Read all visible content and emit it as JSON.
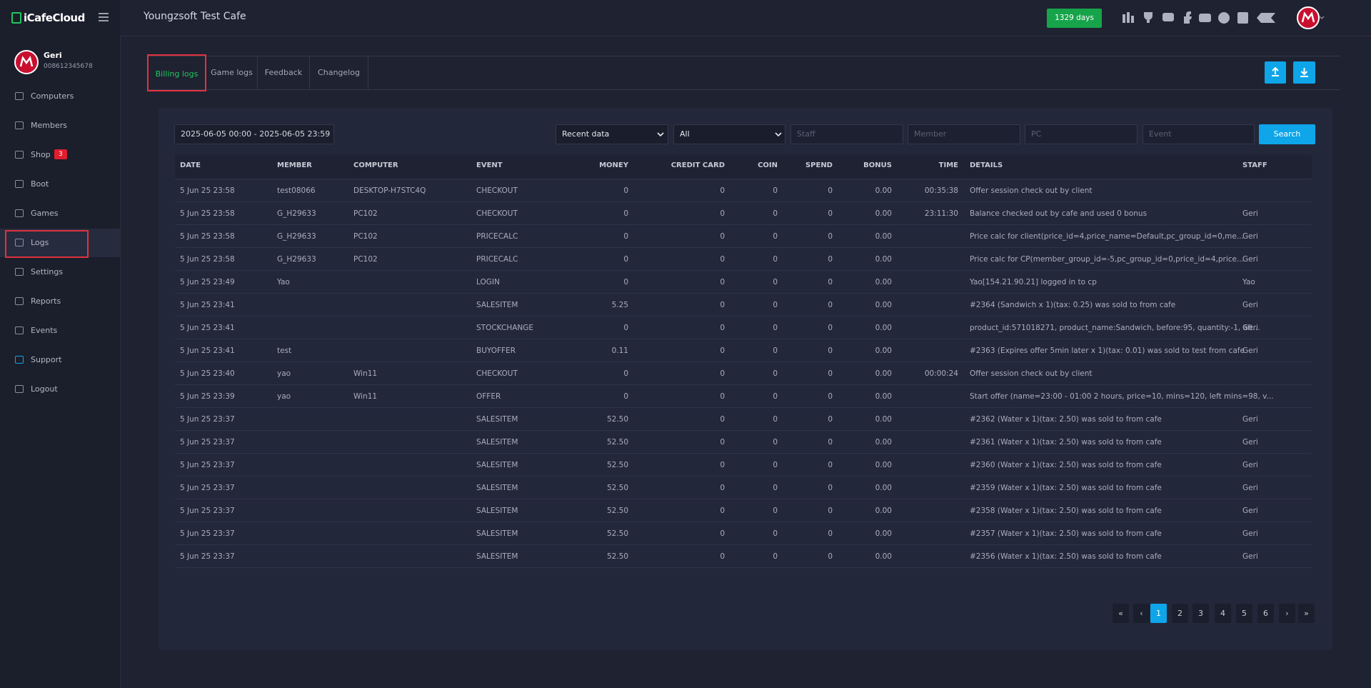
{
  "sidebar": {
    "logo": "iCafeCloud",
    "user": {
      "name": "Geri",
      "id": "008612345678"
    },
    "nav": [
      {
        "label": "Computers"
      },
      {
        "label": "Members"
      },
      {
        "label": "Shop",
        "badge": 3
      },
      {
        "label": "Boot"
      },
      {
        "label": "Games"
      },
      {
        "label": "Logs"
      },
      {
        "label": "Settings"
      },
      {
        "label": "Reports"
      },
      {
        "label": "Events"
      },
      {
        "label": "Support"
      },
      {
        "label": "Logout"
      }
    ]
  },
  "header": {
    "title": "Youngzsoft Test Cafe",
    "days": "1329 days"
  },
  "tabs": [
    "Billing logs",
    "Game logs",
    "Feedback",
    "Changelog"
  ],
  "filters": {
    "date_range": "2025-06-05 00:00 - 2025-06-05 23:59",
    "mode": "Recent data",
    "scope": "All",
    "staff": "Staff",
    "member": "Member",
    "pc": "PC",
    "event": "Event",
    "search": "Search"
  },
  "table": {
    "columns": [
      "DATE",
      "MEMBER",
      "COMPUTER",
      "EVENT",
      "MONEY",
      "CREDIT CARD",
      "COIN",
      "SPEND",
      "BONUS",
      "TIME",
      "DETAILS",
      "STAFF"
    ],
    "rows": [
      [
        "5 Jun 25 23:58",
        "test08066",
        "DESKTOP-H7STC4Q",
        "CHECKOUT",
        "0",
        "0",
        "0",
        "0",
        "0.00",
        "00:35:38",
        "Offer session check out by client",
        null
      ],
      [
        "5 Jun 25 23:58",
        "G_H29633",
        "PC102",
        "CHECKOUT",
        "0",
        "0",
        "0",
        "0",
        "0.00",
        "23:11:30",
        "Balance checked out by cafe and used 0 bonus",
        "Geri"
      ],
      [
        "5 Jun 25 23:58",
        "G_H29633",
        "PC102",
        "PRICECALC",
        "0",
        "0",
        "0",
        "0",
        "0.00",
        null,
        "Price calc for client(price_id=4,price_name=Default,pc_group_id=0,me...",
        "Geri"
      ],
      [
        "5 Jun 25 23:58",
        "G_H29633",
        "PC102",
        "PRICECALC",
        "0",
        "0",
        "0",
        "0",
        "0.00",
        null,
        "Price calc for CP(member_group_id=-5,pc_group_id=0,price_id=4,price...",
        "Geri"
      ],
      [
        "5 Jun 25 23:49",
        "Yao",
        null,
        "LOGIN",
        "0",
        "0",
        "0",
        "0",
        "0.00",
        null,
        "Yao[154.21.90.21] logged in to cp",
        "Yao"
      ],
      [
        "5 Jun 25 23:41",
        null,
        null,
        "SALESITEM",
        "5.25",
        "0",
        "0",
        "0",
        "0.00",
        null,
        "#2364 (Sandwich x 1)(tax: 0.25) was sold to from cafe",
        "Geri"
      ],
      [
        "5 Jun 25 23:41",
        null,
        null,
        "STOCKCHANGE",
        "0",
        "0",
        "0",
        "0",
        "0.00",
        null,
        "product_id:571018271, product_name:Sandwich, before:95, quantity:-1, aft...",
        "Geri"
      ],
      [
        "5 Jun 25 23:41",
        "test",
        null,
        "BUYOFFER",
        "0.11",
        "0",
        "0",
        "0",
        "0.00",
        null,
        "#2363 (Expires offer 5min later x 1)(tax: 0.01) was sold to test from cafe",
        "Geri"
      ],
      [
        "5 Jun 25 23:40",
        "yao",
        "Win11",
        "CHECKOUT",
        "0",
        "0",
        "0",
        "0",
        "0.00",
        "00:00:24",
        "Offer session check out by client",
        null
      ],
      [
        "5 Jun 25 23:39",
        "yao",
        "Win11",
        "OFFER",
        "0",
        "0",
        "0",
        "0",
        "0.00",
        null,
        "Start offer (name=23:00 - 01:00 2 hours, price=10, mins=120, left mins=98, v...",
        null
      ],
      [
        "5 Jun 25 23:37",
        null,
        null,
        "SALESITEM",
        "52.50",
        "0",
        "0",
        "0",
        "0.00",
        null,
        "#2362 (Water x 1)(tax: 2.50) was sold to from cafe",
        "Geri"
      ],
      [
        "5 Jun 25 23:37",
        null,
        null,
        "SALESITEM",
        "52.50",
        "0",
        "0",
        "0",
        "0.00",
        null,
        "#2361 (Water x 1)(tax: 2.50) was sold to from cafe",
        "Geri"
      ],
      [
        "5 Jun 25 23:37",
        null,
        null,
        "SALESITEM",
        "52.50",
        "0",
        "0",
        "0",
        "0.00",
        null,
        "#2360 (Water x 1)(tax: 2.50) was sold to from cafe",
        "Geri"
      ],
      [
        "5 Jun 25 23:37",
        null,
        null,
        "SALESITEM",
        "52.50",
        "0",
        "0",
        "0",
        "0.00",
        null,
        "#2359 (Water x 1)(tax: 2.50) was sold to from cafe",
        "Geri"
      ],
      [
        "5 Jun 25 23:37",
        null,
        null,
        "SALESITEM",
        "52.50",
        "0",
        "0",
        "0",
        "0.00",
        null,
        "#2358 (Water x 1)(tax: 2.50) was sold to from cafe",
        "Geri"
      ],
      [
        "5 Jun 25 23:37",
        null,
        null,
        "SALESITEM",
        "52.50",
        "0",
        "0",
        "0",
        "0.00",
        null,
        "#2357 (Water x 1)(tax: 2.50) was sold to from cafe",
        "Geri"
      ],
      [
        "5 Jun 25 23:37",
        null,
        null,
        "SALESITEM",
        "52.50",
        "0",
        "0",
        "0",
        "0.00",
        null,
        "#2356 (Water x 1)(tax: 2.50) was sold to from cafe",
        "Geri"
      ]
    ]
  },
  "pagination": [
    "«",
    "‹",
    "1",
    "2",
    "3",
    "4",
    "5",
    "6",
    "›",
    "»"
  ]
}
